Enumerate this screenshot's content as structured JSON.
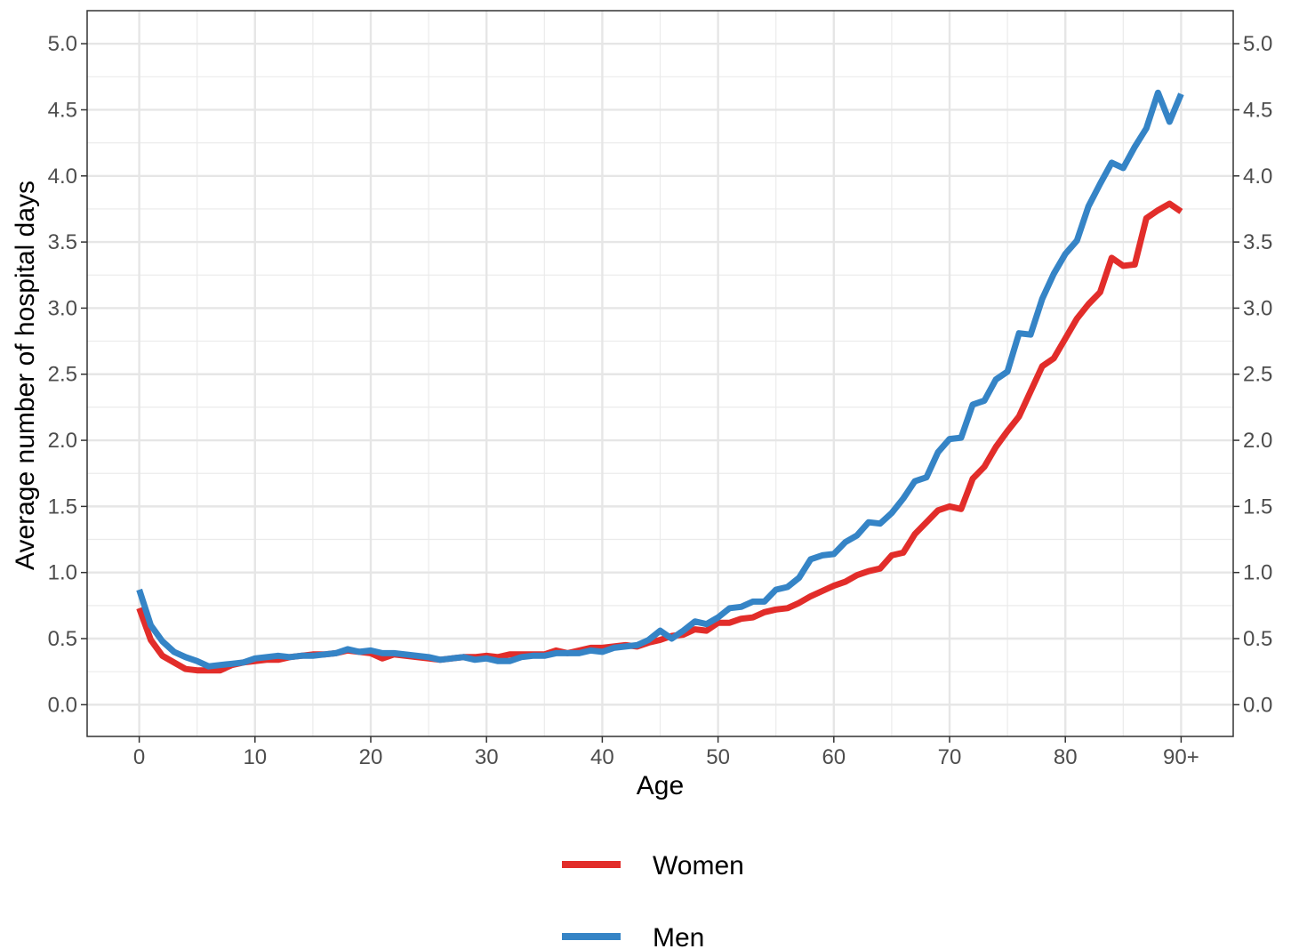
{
  "chart_data": {
    "type": "line",
    "xlabel": "Age",
    "ylabel": "Average number of hospital days",
    "xlim": [
      -4.5,
      94.5
    ],
    "ylim": [
      -0.24,
      5.25
    ],
    "x_ticks": [
      0,
      10,
      20,
      30,
      40,
      50,
      60,
      70,
      80,
      90
    ],
    "x_tick_labels": [
      "0",
      "10",
      "20",
      "30",
      "40",
      "50",
      "60",
      "70",
      "80",
      "90+"
    ],
    "y_ticks": [
      0.0,
      0.5,
      1.0,
      1.5,
      2.0,
      2.5,
      3.0,
      3.5,
      4.0,
      4.5,
      5.0
    ],
    "y_tick_labels": [
      "0.0",
      "0.5",
      "1.0",
      "1.5",
      "2.0",
      "2.5",
      "3.0",
      "3.5",
      "4.0",
      "4.5",
      "5.0"
    ],
    "secondary_y_axis": true,
    "grid": true,
    "legend_position": "bottom",
    "x": [
      0,
      1,
      2,
      3,
      4,
      5,
      6,
      7,
      8,
      9,
      10,
      11,
      12,
      13,
      14,
      15,
      16,
      17,
      18,
      19,
      20,
      21,
      22,
      23,
      24,
      25,
      26,
      27,
      28,
      29,
      30,
      31,
      32,
      33,
      34,
      35,
      36,
      37,
      38,
      39,
      40,
      41,
      42,
      43,
      44,
      45,
      46,
      47,
      48,
      49,
      50,
      51,
      52,
      53,
      54,
      55,
      56,
      57,
      58,
      59,
      60,
      61,
      62,
      63,
      64,
      65,
      66,
      67,
      68,
      69,
      70,
      71,
      72,
      73,
      74,
      75,
      76,
      77,
      78,
      79,
      80,
      81,
      82,
      83,
      84,
      85,
      86,
      87,
      88,
      89,
      90
    ],
    "series": [
      {
        "name": "Women",
        "color": "#E22D2A",
        "values": [
          0.73,
          0.49,
          0.37,
          0.32,
          0.27,
          0.26,
          0.26,
          0.26,
          0.3,
          0.32,
          0.33,
          0.34,
          0.34,
          0.36,
          0.37,
          0.38,
          0.38,
          0.39,
          0.41,
          0.4,
          0.39,
          0.35,
          0.38,
          0.37,
          0.36,
          0.35,
          0.34,
          0.35,
          0.36,
          0.36,
          0.37,
          0.36,
          0.38,
          0.38,
          0.38,
          0.38,
          0.41,
          0.39,
          0.41,
          0.43,
          0.43,
          0.44,
          0.45,
          0.44,
          0.47,
          0.49,
          0.52,
          0.53,
          0.57,
          0.56,
          0.62,
          0.62,
          0.65,
          0.66,
          0.7,
          0.72,
          0.73,
          0.77,
          0.82,
          0.86,
          0.9,
          0.93,
          0.98,
          1.01,
          1.03,
          1.13,
          1.15,
          1.29,
          1.38,
          1.47,
          1.5,
          1.48,
          1.71,
          1.8,
          1.95,
          2.07,
          2.18,
          2.37,
          2.56,
          2.62,
          2.77,
          2.92,
          3.03,
          3.12,
          3.38,
          3.32,
          3.33,
          3.68,
          3.74,
          3.79,
          3.73
        ]
      },
      {
        "name": "Men",
        "color": "#3584C6",
        "values": [
          0.87,
          0.6,
          0.48,
          0.4,
          0.36,
          0.33,
          0.29,
          0.3,
          0.31,
          0.32,
          0.35,
          0.36,
          0.37,
          0.36,
          0.37,
          0.37,
          0.38,
          0.39,
          0.42,
          0.4,
          0.41,
          0.39,
          0.39,
          0.38,
          0.37,
          0.36,
          0.34,
          0.35,
          0.36,
          0.34,
          0.35,
          0.33,
          0.33,
          0.36,
          0.37,
          0.37,
          0.39,
          0.39,
          0.39,
          0.41,
          0.4,
          0.43,
          0.44,
          0.45,
          0.49,
          0.56,
          0.5,
          0.56,
          0.63,
          0.61,
          0.66,
          0.73,
          0.74,
          0.78,
          0.78,
          0.87,
          0.89,
          0.96,
          1.1,
          1.13,
          1.14,
          1.23,
          1.28,
          1.38,
          1.37,
          1.45,
          1.56,
          1.69,
          1.72,
          1.91,
          2.01,
          2.02,
          2.27,
          2.3,
          2.46,
          2.52,
          2.81,
          2.8,
          3.07,
          3.26,
          3.41,
          3.51,
          3.77,
          3.94,
          4.1,
          4.06,
          4.22,
          4.36,
          4.63,
          4.41,
          4.62
        ]
      }
    ]
  }
}
